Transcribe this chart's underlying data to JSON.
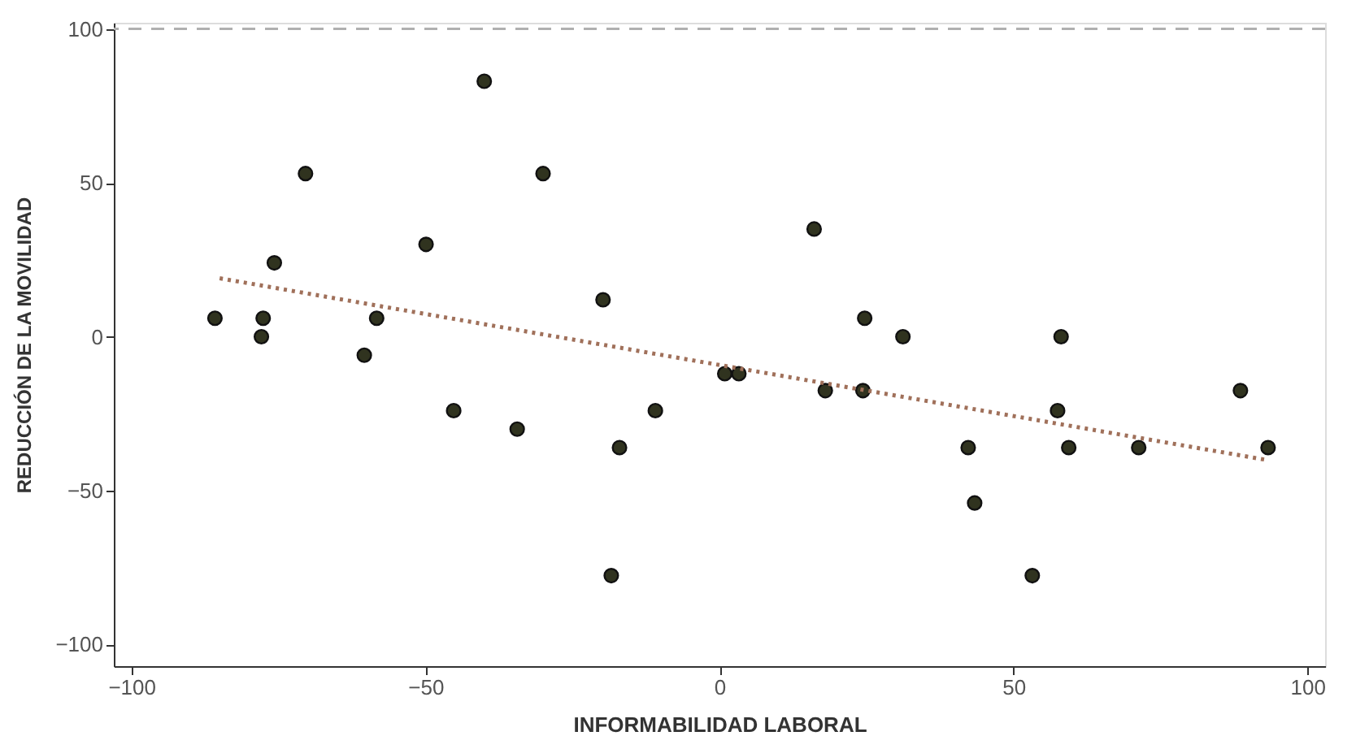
{
  "chart_data": {
    "type": "scatter",
    "xlabel": "INFORMABILIDAD LABORAL",
    "ylabel": "REDUCCIÓN DE LA MOVILIDAD",
    "xlim": [
      -103,
      103
    ],
    "xticks": [
      -100,
      -50,
      0,
      50,
      100
    ],
    "ylim": [
      -107,
      102
    ],
    "yticks": [
      -100,
      -50,
      0,
      50,
      100
    ],
    "grid": false,
    "ref_lines": [
      {
        "axis": "y",
        "value": 100,
        "color": "#b0b0b0",
        "line_style": "dashed"
      }
    ],
    "series": [
      {
        "color": "#30331f",
        "marker": "circle",
        "x": [
          -85.8,
          -77.6,
          -77.9,
          -75.7,
          -70.4,
          -60.4,
          -58.3,
          -49.9,
          -45.2,
          -40,
          -34.4,
          -30,
          -19.8,
          -18.4,
          -17,
          -10.9,
          0.9,
          3.3,
          16.1,
          18,
          24.7,
          24.4,
          31.2,
          42.3,
          43.4,
          53.2,
          57.5,
          58.1,
          59.4,
          71.3,
          88.6,
          93.3
        ],
        "values": [
          6,
          6,
          0,
          24,
          53,
          -6,
          6,
          30,
          -24,
          83,
          -30,
          53,
          12,
          -77.6,
          -36,
          -24,
          -12,
          -12,
          35,
          -17.5,
          6,
          -17.5,
          0,
          -36,
          -54,
          -77.6,
          -24,
          0,
          -36,
          -36,
          -17.5,
          -36
        ]
      },
      {
        "type": "line",
        "color": "#a0705a",
        "line_style": "dotted",
        "marker": "none",
        "x": [
          -85,
          93
        ],
        "values": [
          19,
          -40
        ]
      }
    ]
  }
}
